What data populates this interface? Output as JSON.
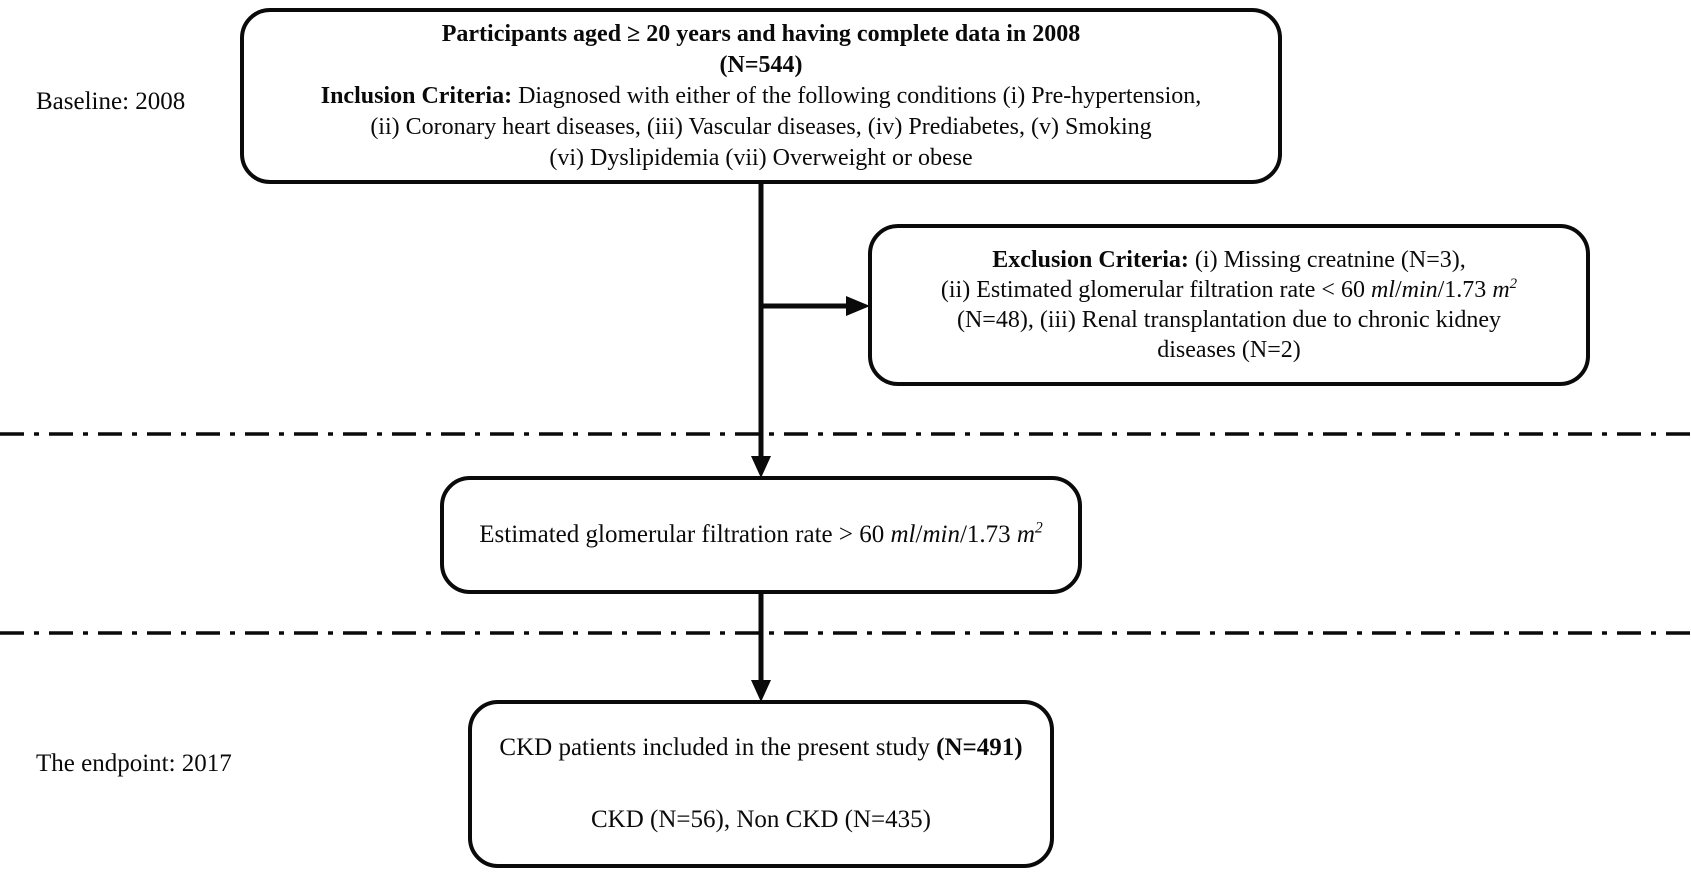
{
  "page": {
    "background_color": "#ffffff",
    "ink_color": "#0a0a0a"
  },
  "side_labels": {
    "baseline": "Baseline: 2008",
    "endpoint": "The endpoint: 2017"
  },
  "boxes": {
    "participants": {
      "lines": [
        {
          "segments": [
            {
              "text": "Participants aged ≥ 20 years and having complete data in 2008",
              "bold": true
            }
          ]
        },
        {
          "segments": [
            {
              "text": "(N=544)",
              "bold": true
            }
          ]
        },
        {
          "segments": [
            {
              "text": "Inclusion Criteria: ",
              "bold": true
            },
            {
              "text": "Diagnosed with either of the following conditions (i) Pre-hypertension,"
            }
          ]
        },
        {
          "segments": [
            {
              "text": "(ii) Coronary heart diseases, (iii) Vascular diseases, (iv) Prediabetes, (v) Smoking"
            }
          ]
        },
        {
          "segments": [
            {
              "text": "(vi) Dyslipidemia (vii) Overweight or obese"
            }
          ]
        }
      ]
    },
    "exclusion": {
      "lines": [
        {
          "segments": [
            {
              "text": "Exclusion Criteria: ",
              "bold": true
            },
            {
              "text": "(i) Missing creatnine (N=3),"
            }
          ]
        },
        {
          "segments": [
            {
              "text": "(ii) Estimated glomerular filtration rate < 60 "
            },
            {
              "text": "ml",
              "italic": true
            },
            {
              "text": "/"
            },
            {
              "text": "min",
              "italic": true
            },
            {
              "text": "/1.73 "
            },
            {
              "text": "m",
              "italic": true
            },
            {
              "text": "2",
              "italic": true,
              "sup": true
            }
          ]
        },
        {
          "segments": [
            {
              "text": "(N=48), (iii) Renal transplantation due to chronic kidney"
            }
          ]
        },
        {
          "segments": [
            {
              "text": "diseases (N=2)"
            }
          ]
        }
      ]
    },
    "egfr": {
      "lines": [
        {
          "segments": [
            {
              "text": "Estimated glomerular filtration rate > 60 "
            },
            {
              "text": "ml",
              "italic": true
            },
            {
              "text": "/"
            },
            {
              "text": "min",
              "italic": true
            },
            {
              "text": "/1.73 "
            },
            {
              "text": "m",
              "italic": true
            },
            {
              "text": "2",
              "italic": true,
              "sup": true
            }
          ]
        }
      ]
    },
    "ckd": {
      "lines": [
        {
          "segments": [
            {
              "text": "CKD patients included in the present study "
            },
            {
              "text": "(N=491)",
              "bold": true
            }
          ]
        },
        {
          "segments": [
            {
              "text": "CKD (N=56), Non CKD (N=435)"
            }
          ]
        }
      ]
    }
  },
  "counts": {
    "baseline_total": 544,
    "excluded_missing_creatnine": 3,
    "excluded_low_egfr": 48,
    "excluded_renal_transplant": 2,
    "included_total": 491,
    "ckd": 56,
    "non_ckd": 435
  }
}
